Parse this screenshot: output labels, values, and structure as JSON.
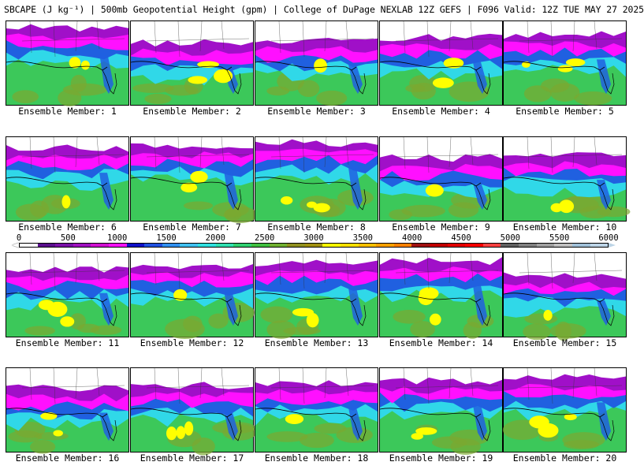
{
  "header": {
    "title": "SBCAPE (J kg⁻¹) | 500mb Geopotential Height (gpm) | College of DuPage NEXLAB 12Z GEFS | F096 Valid: 12Z TUE MAY 27 2025"
  },
  "colorbar": {
    "labels": [
      "0",
      "500",
      "1000",
      "1500",
      "2000",
      "2500",
      "3000",
      "3500",
      "4000",
      "4500",
      "5000",
      "5500",
      "6000"
    ],
    "colors": [
      "#ffffff",
      "#5a0f8c",
      "#7a10a8",
      "#a010c0",
      "#d010d0",
      "#ff10ff",
      "#1010c8",
      "#2050e0",
      "#3090f0",
      "#40c0f0",
      "#30e0e0",
      "#30e0b0",
      "#30d070",
      "#40c040",
      "#70b030",
      "#909020",
      "#a09010",
      "#ffff00",
      "#ffe000",
      "#ffc000",
      "#ffa000",
      "#ff8000",
      "#a01010",
      "#c00000",
      "#e00000",
      "#ff0000",
      "#ff4040",
      "#606060",
      "#808080",
      "#a0a0a0",
      "#c0c0c0",
      "#a0c0d8",
      "#bcd4e6"
    ]
  },
  "members": [
    {
      "label": "Ensemble Member: 1",
      "pattern": 1
    },
    {
      "label": "Ensemble Member: 2",
      "pattern": 2
    },
    {
      "label": "Ensemble Member: 3",
      "pattern": 3
    },
    {
      "label": "Ensemble Member: 4",
      "pattern": 4
    },
    {
      "label": "Ensemble Member: 5",
      "pattern": 5
    },
    {
      "label": "Ensemble Member: 6",
      "pattern": 6
    },
    {
      "label": "Ensemble Member: 7",
      "pattern": 7
    },
    {
      "label": "Ensemble Member: 8",
      "pattern": 8
    },
    {
      "label": "Ensemble Member: 9",
      "pattern": 9
    },
    {
      "label": "Ensemble Member: 10",
      "pattern": 10
    },
    {
      "label": "Ensemble Member: 11",
      "pattern": 11
    },
    {
      "label": "Ensemble Member: 12",
      "pattern": 12
    },
    {
      "label": "Ensemble Member: 13",
      "pattern": 13
    },
    {
      "label": "Ensemble Member: 14",
      "pattern": 14
    },
    {
      "label": "Ensemble Member: 15",
      "pattern": 15
    },
    {
      "label": "Ensemble Member: 16",
      "pattern": 16
    },
    {
      "label": "Ensemble Member: 17",
      "pattern": 17
    },
    {
      "label": "Ensemble Member: 18",
      "pattern": 18
    },
    {
      "label": "Ensemble Member: 19",
      "pattern": 19
    },
    {
      "label": "Ensemble Member: 20",
      "pattern": 20
    }
  ],
  "palette": {
    "gulf_green": "#3cc85a",
    "gulf_olive": "#7aa830",
    "cyan": "#30d8e8",
    "blue": "#2060e0",
    "purple": "#a010c8",
    "magenta": "#ff10ff",
    "yellow": "#ffff00",
    "land_white": "#ffffff"
  }
}
